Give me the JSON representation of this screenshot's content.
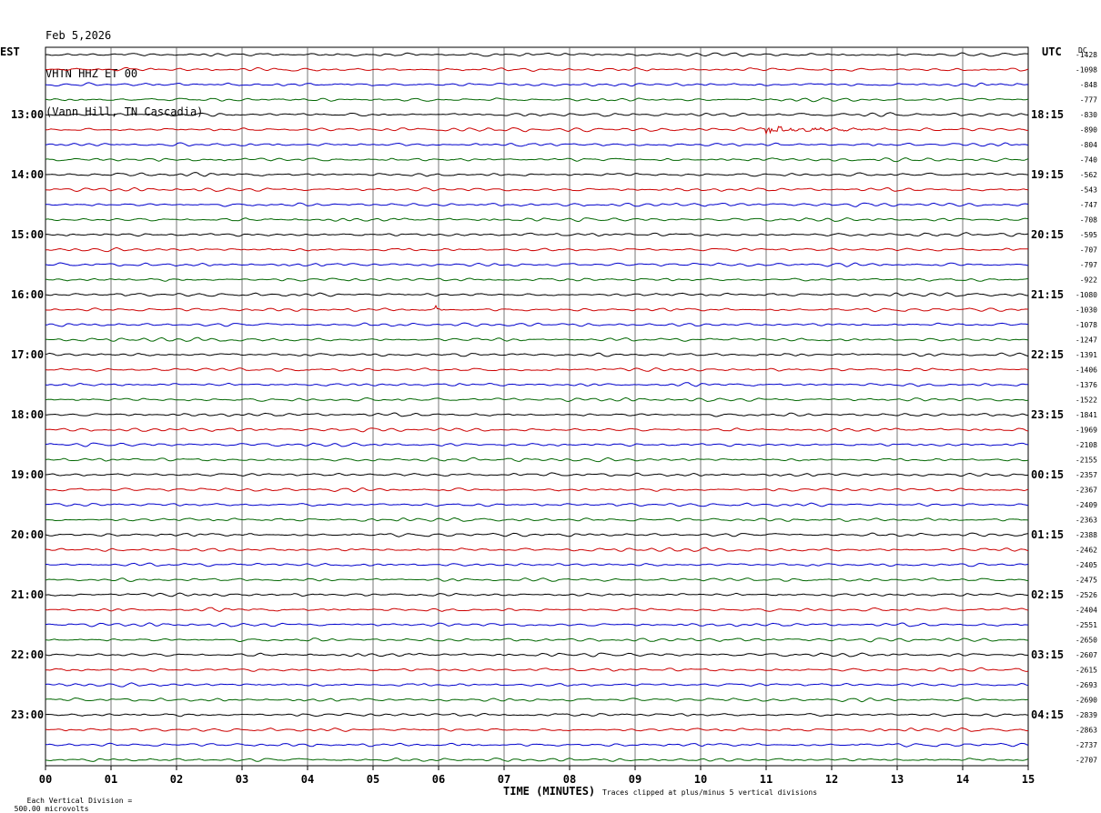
{
  "header": {
    "date": "Feb 5,2026",
    "station": "VHTN HHZ ET 00",
    "location": "(Vann Hill, TN Cascadia)"
  },
  "labels": {
    "left_tz": "EST",
    "right_tz": "UTC",
    "dc": "DC"
  },
  "footer": {
    "scale_prefix": "Each Vertical Division =",
    "scale_value": "500.00 microvolts",
    "xlabel": "TIME (MINUTES)",
    "clip_note": "Traces clipped at plus/minus 5 vertical divisions"
  },
  "chart_data": {
    "type": "line",
    "title": "VHTN HHZ ET 00",
    "xlabel": "TIME (MINUTES)",
    "x_ticks": [
      "00",
      "01",
      "02",
      "03",
      "04",
      "05",
      "06",
      "07",
      "08",
      "09",
      "10",
      "11",
      "12",
      "13",
      "14",
      "15"
    ],
    "xlim": [
      0,
      15
    ],
    "rows_per_hour": 4,
    "row_colors": [
      "#000000",
      "#cc0000",
      "#0000cc",
      "#006600"
    ],
    "left_hour_labels": [
      "13:00",
      "14:00",
      "15:00",
      "16:00",
      "17:00",
      "18:00",
      "19:00",
      "20:00",
      "21:00",
      "22:00",
      "23:00"
    ],
    "right_hour_labels": [
      "18:15",
      "19:15",
      "20:15",
      "21:15",
      "22:15",
      "23:15",
      "00:15",
      "01:15",
      "02:15",
      "03:15",
      "04:15"
    ],
    "dc_offsets": [
      "-1428",
      "-1098",
      "-848",
      "-777",
      "-830",
      "-890",
      "-804",
      "-740",
      "-562",
      "-543",
      "-747",
      "-708",
      "-595",
      "-707",
      "-797",
      "-922",
      "-1080",
      "-1030",
      "-1078",
      "-1247",
      "-1391",
      "-1406",
      "-1376",
      "-1522",
      "-1841",
      "-1969",
      "-2108",
      "-2155",
      "-2357",
      "-2367",
      "-2409",
      "-2363",
      "-2388",
      "-2462",
      "-2405",
      "-2475",
      "-2526",
      "-2404",
      "-2551",
      "-2650",
      "-2607",
      "-2615",
      "-2693",
      "-2690",
      "-2839",
      "-2863",
      "-2737",
      "-2707"
    ],
    "events": [
      {
        "row": 5,
        "x_min": 11.0,
        "duration_min": 2.0,
        "amplitude_divisions": 1.6
      },
      {
        "row": 17,
        "x_min": 5.95,
        "duration_min": 0.25,
        "amplitude_divisions": 0.7
      }
    ]
  }
}
